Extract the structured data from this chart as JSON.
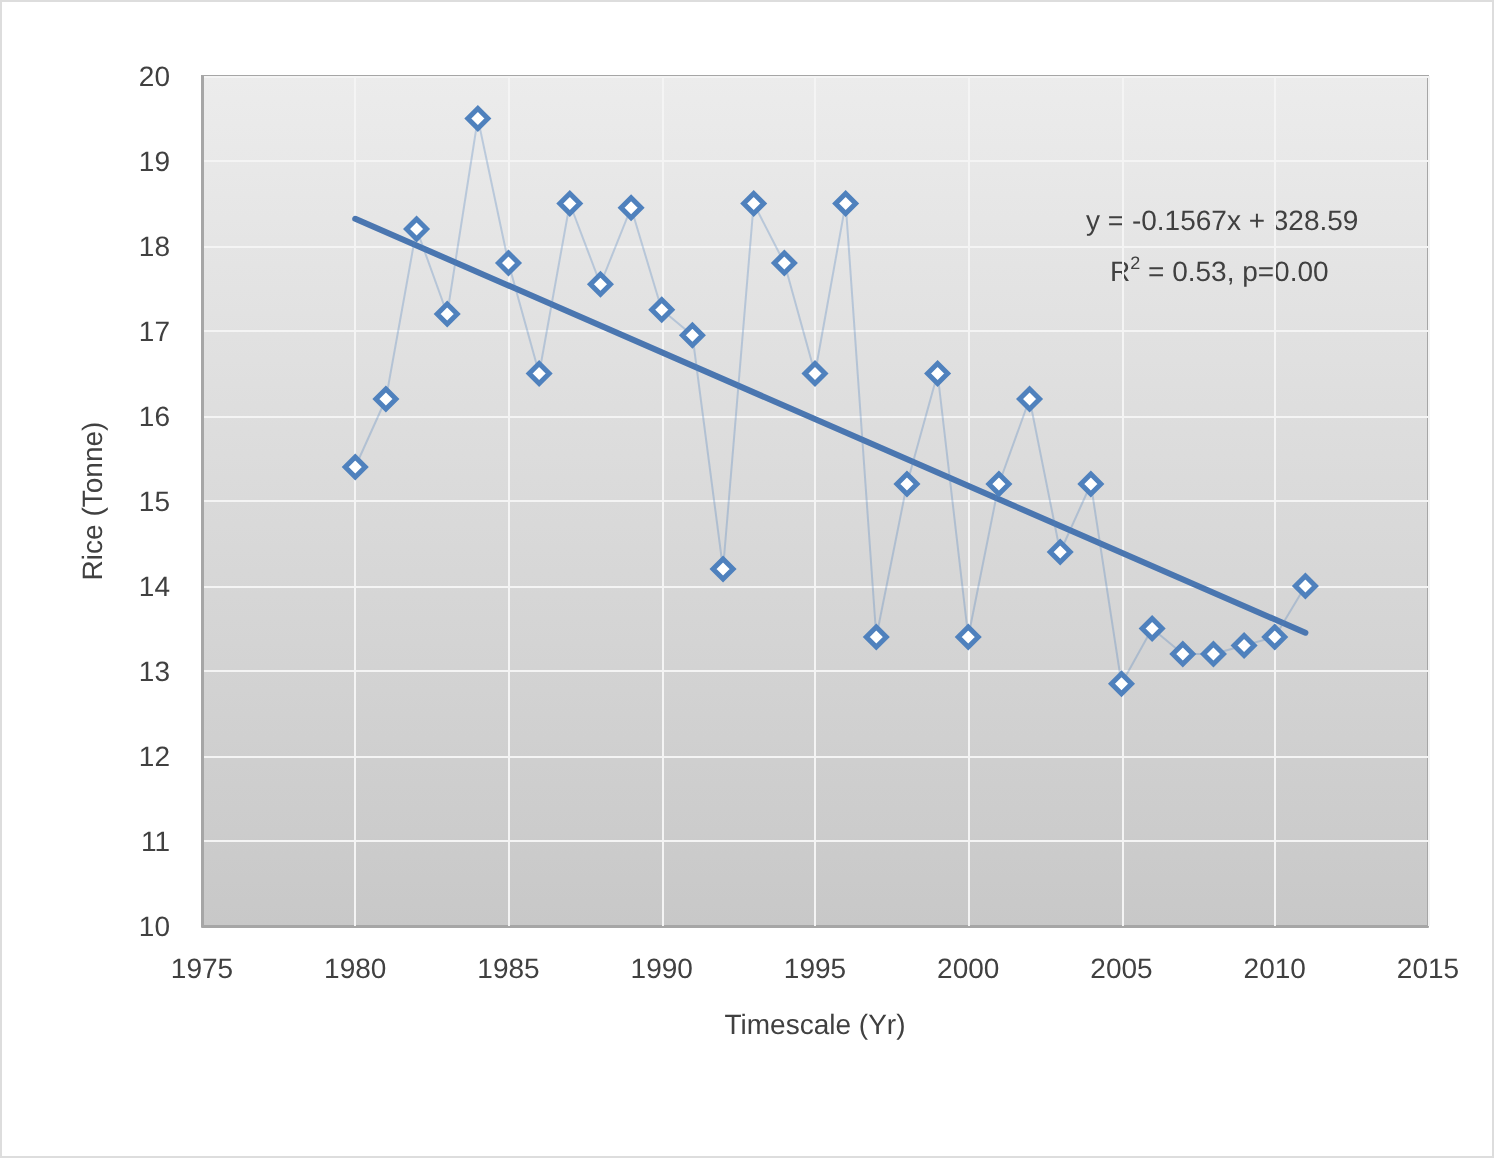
{
  "chart_data": {
    "type": "line",
    "xlabel": "Timescale (Yr)",
    "ylabel": "Rice (Tonne)",
    "xlim": [
      1975,
      2015
    ],
    "xticks": [
      1975,
      1980,
      1985,
      1990,
      1995,
      2000,
      2005,
      2010,
      2015
    ],
    "ylim": [
      10,
      20
    ],
    "yticks": [
      10,
      11,
      12,
      13,
      14,
      15,
      16,
      17,
      18,
      19,
      20
    ],
    "grid": true,
    "series": [
      {
        "color": "#4f81bd",
        "marker": "diamond",
        "line_style": "solid",
        "x": [
          1980,
          1981,
          1982,
          1983,
          1984,
          1985,
          1986,
          1987,
          1988,
          1989,
          1990,
          1991,
          1992,
          1993,
          1994,
          1995,
          1996,
          1997,
          1998,
          1999,
          2000,
          2001,
          2002,
          2003,
          2004,
          2005,
          2006,
          2007,
          2008,
          2009,
          2010,
          2011
        ],
        "values": [
          15.4,
          16.2,
          18.2,
          17.2,
          19.5,
          17.8,
          16.5,
          18.5,
          17.55,
          18.45,
          17.25,
          16.95,
          14.2,
          18.5,
          17.8,
          16.5,
          18.5,
          13.4,
          15.2,
          16.5,
          13.4,
          15.2,
          16.2,
          14.4,
          15.2,
          12.85,
          13.5,
          13.2,
          13.2,
          13.3,
          13.4,
          14.0
        ]
      },
      {
        "color": "#4a76b0",
        "marker": "none",
        "line_style": "solid",
        "x": [
          1980,
          2011
        ],
        "values": [
          18.32,
          13.45
        ]
      }
    ],
    "annotations": [
      "y = -0.1567x + 328.59",
      "R$^{2}$ = 0.53, p=0.00"
    ]
  }
}
